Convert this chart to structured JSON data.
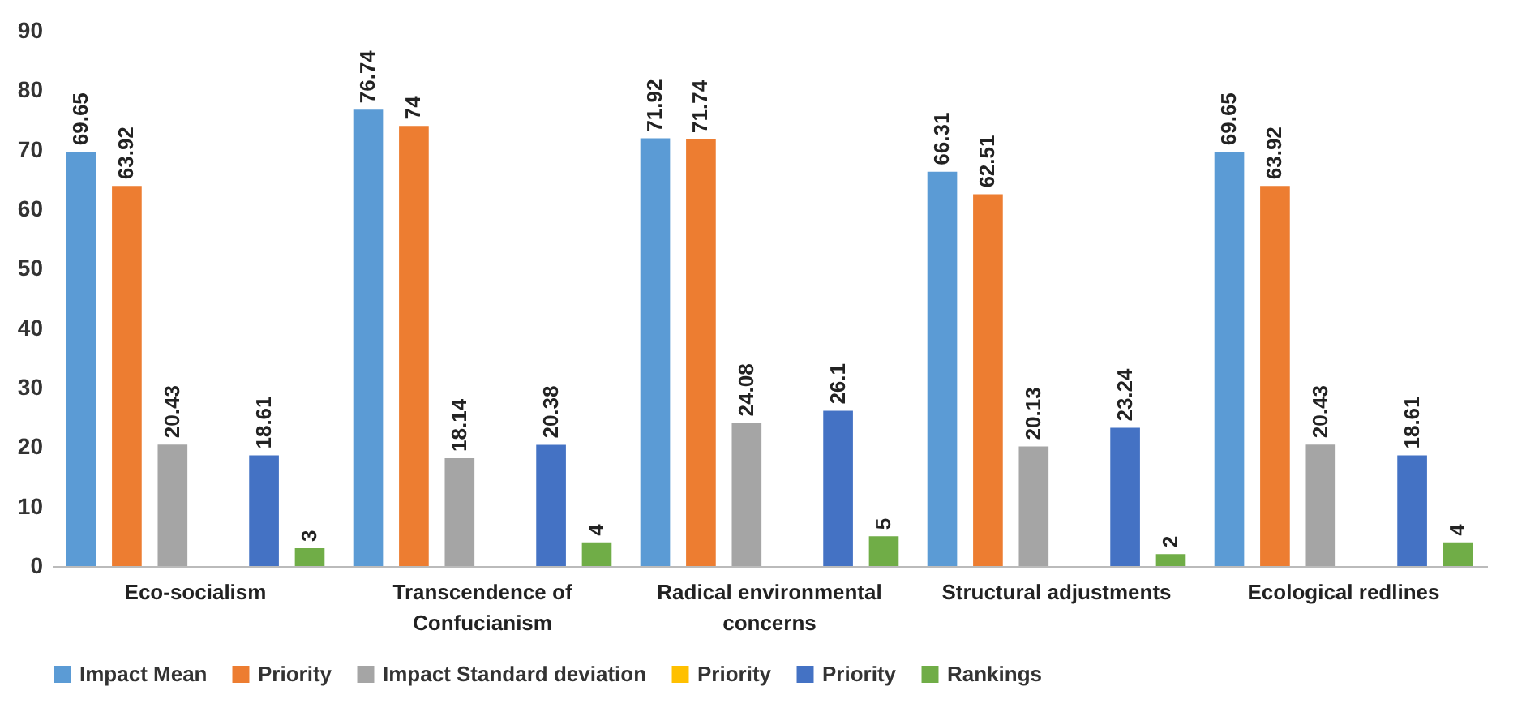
{
  "chart_data": {
    "type": "bar",
    "categories": [
      "Eco-socialism",
      "Transcendence of Confucianism",
      "Radical environmental concerns",
      "Structural adjustments",
      "Ecological redlines"
    ],
    "series": [
      {
        "name": "Impact Mean",
        "color": "#5b9bd5",
        "values": [
          69.65,
          76.74,
          71.92,
          66.31,
          69.65
        ]
      },
      {
        "name": "Priority",
        "color": "#ed7d31",
        "values": [
          63.92,
          74,
          71.74,
          62.51,
          63.92
        ]
      },
      {
        "name": "Impact Standard deviation",
        "color": "#a5a5a5",
        "values": [
          20.43,
          18.14,
          24.08,
          20.13,
          20.43
        ]
      },
      {
        "name": "Priority",
        "color": "#ffc000",
        "values": [
          null,
          null,
          null,
          null,
          null
        ]
      },
      {
        "name": "Priority",
        "color": "#4472c4",
        "values": [
          18.61,
          20.38,
          26.1,
          23.24,
          18.61
        ]
      },
      {
        "name": "Rankings",
        "color": "#70ad47",
        "values": [
          3,
          4,
          5,
          2,
          4
        ]
      }
    ],
    "ylim": [
      0,
      90
    ],
    "yticks": [
      0,
      10,
      20,
      30,
      40,
      50,
      60,
      70,
      80,
      90
    ],
    "grid": false,
    "legend": "bottom",
    "data_labels": true
  }
}
